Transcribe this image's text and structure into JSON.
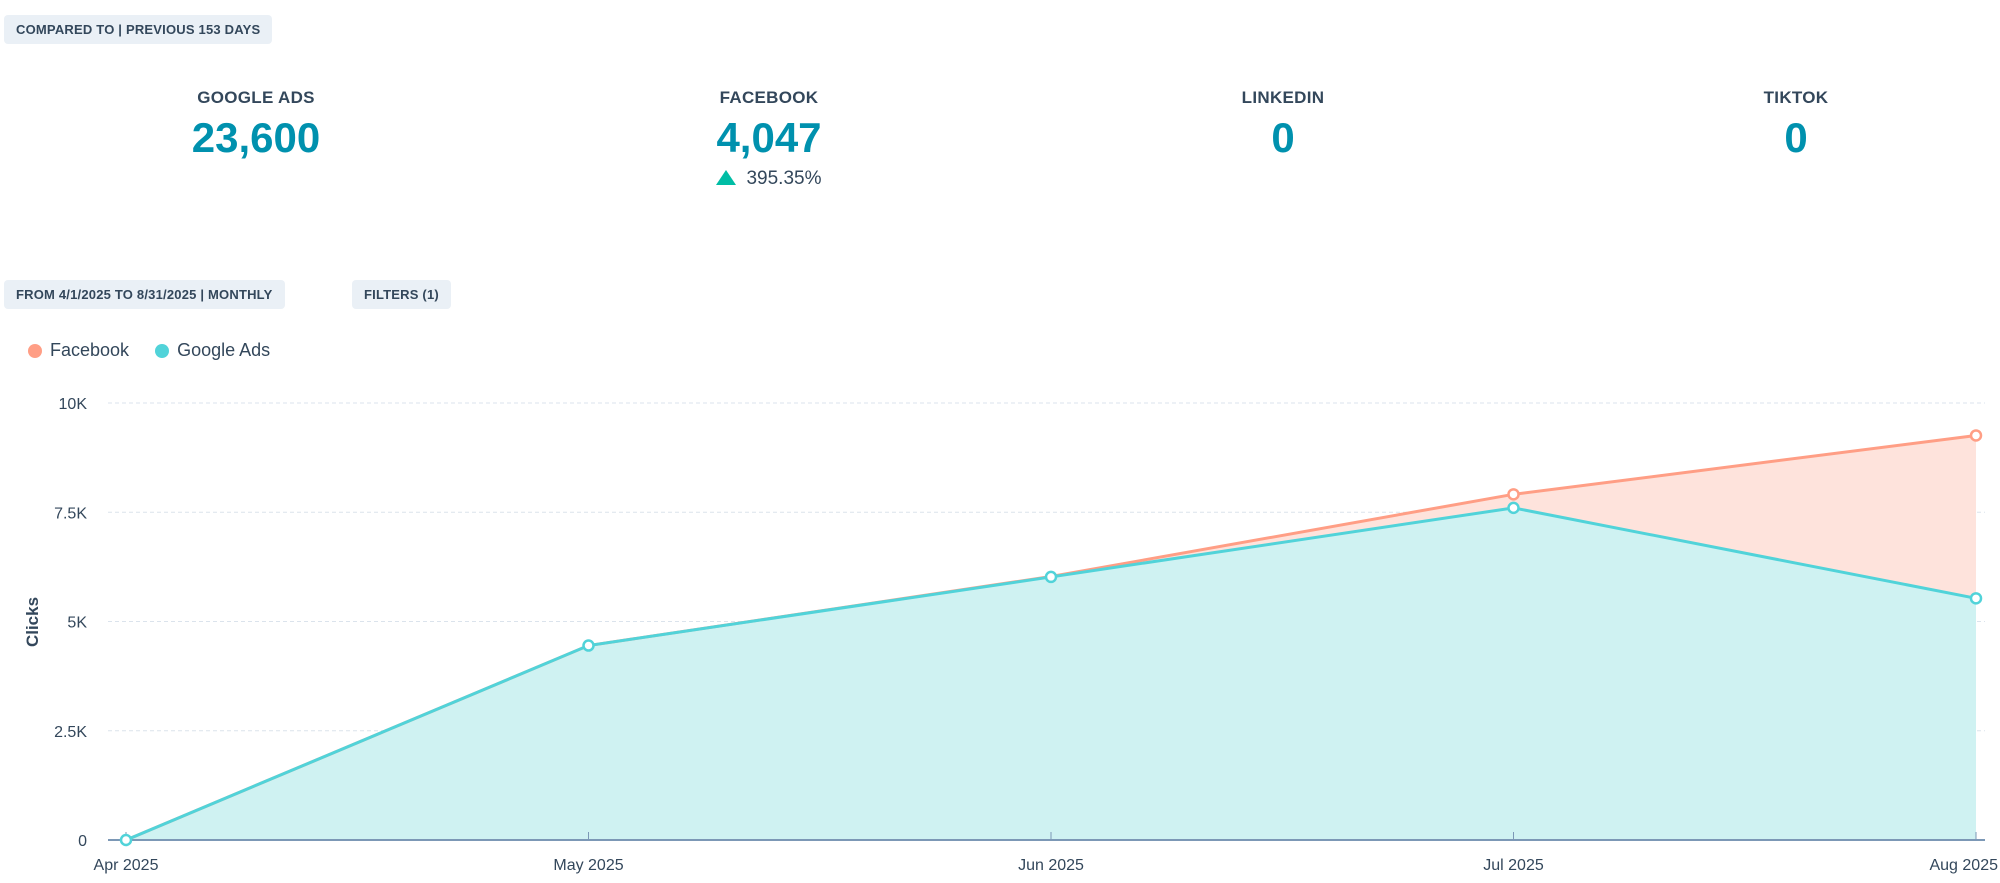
{
  "compare_badge": "COMPARED TO | PREVIOUS 153 DAYS",
  "kpis": [
    {
      "label": "GOOGLE ADS",
      "value": "23,600",
      "delta": ""
    },
    {
      "label": "FACEBOOK",
      "value": "4,047",
      "delta": "395.35%"
    },
    {
      "label": "LINKEDIN",
      "value": "0",
      "delta": ""
    },
    {
      "label": "TIKTOK",
      "value": "0",
      "delta": ""
    }
  ],
  "date_range_badge": "FROM 4/1/2025 TO 8/31/2025 | MONTHLY",
  "filters_badge": "FILTERS (1)",
  "chart_data": {
    "type": "area",
    "stacked": true,
    "categories": [
      "Apr 2025",
      "May 2025",
      "Jun 2025",
      "Jul 2025",
      "Aug 2025"
    ],
    "series": [
      {
        "name": "Google Ads",
        "color": "#51d3d9",
        "values": [
          0,
          4450,
          6020,
          7600,
          5530
        ]
      },
      {
        "name": "Facebook",
        "color": "#ff9e85",
        "values": [
          0,
          0,
          10,
          310,
          3727
        ]
      }
    ],
    "ylabel": "Clicks",
    "ylim": [
      0,
      10000
    ],
    "yticks": [
      {
        "v": 0,
        "label": "0"
      },
      {
        "v": 2500,
        "label": "2.5K"
      },
      {
        "v": 5000,
        "label": "5K"
      },
      {
        "v": 7500,
        "label": "7.5K"
      },
      {
        "v": 10000,
        "label": "10K"
      }
    ],
    "grid": true,
    "legend": "top-left"
  }
}
